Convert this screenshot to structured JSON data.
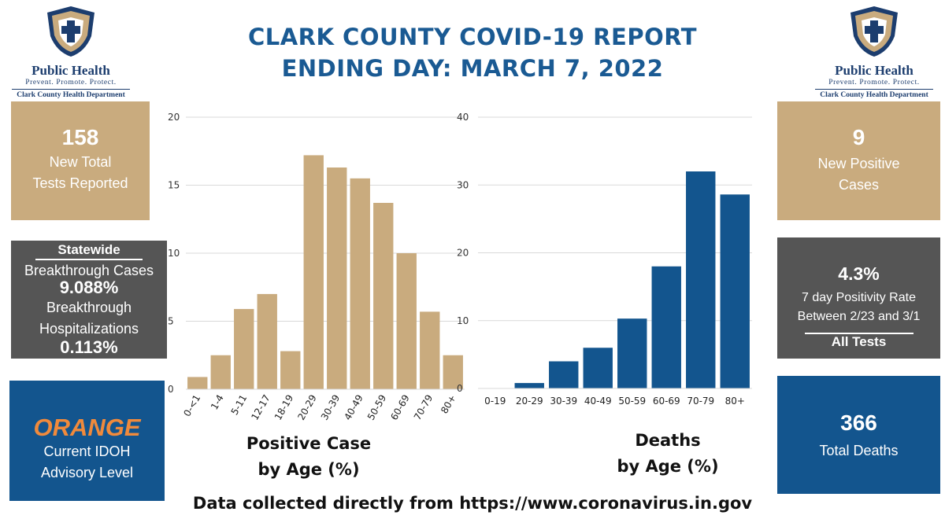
{
  "header": {
    "title_line1": "CLARK COUNTY COVID-19 REPORT",
    "title_line2": "ENDING DAY: MARCH 7, 2022"
  },
  "logo": {
    "name": "Public Health",
    "tagline": "Prevent. Promote. Protect.",
    "department": "Clark County Health Department"
  },
  "left_panels": {
    "tests": {
      "value": "158",
      "line1": "New Total",
      "line2": "Tests Reported"
    },
    "breakthrough": {
      "heading": "Statewide",
      "cases_label": "Breakthrough Cases",
      "cases_value": "9.088%",
      "hosp_label1": "Breakthrough",
      "hosp_label2": "Hospitalizations",
      "hosp_value": "0.113%"
    },
    "advisory": {
      "level": "ORANGE",
      "line1": "Current IDOH",
      "line2": "Advisory Level"
    }
  },
  "right_panels": {
    "cases": {
      "value": "9",
      "line1": "New Positive",
      "line2": "Cases"
    },
    "positivity": {
      "value": "4.3%",
      "line1": "7  day  Positivity Rate",
      "line2": "Between 2/23 and 3/1",
      "footer": "All Tests"
    },
    "deaths": {
      "value": "366",
      "label": "Total Deaths"
    }
  },
  "chart_captions": {
    "cases_line1": "Positive Case",
    "cases_line2": "by Age (%)",
    "deaths_line1": "Deaths",
    "deaths_line2": "by Age (%)"
  },
  "footer": {
    "text": "Data collected directly from https://www.coronavirus.in.gov"
  },
  "colors": {
    "tan": "#c9ab7e",
    "grey": "#555555",
    "blue": "#13558e",
    "orange": "#f08a3c",
    "title": "#1a5a93"
  },
  "chart_data": [
    {
      "type": "bar",
      "categories": [
        "0-<1",
        "1-4",
        "5-11",
        "12-17",
        "18-19",
        "20-29",
        "30-39",
        "40-49",
        "50-59",
        "60-69",
        "70-79",
        "80+"
      ],
      "values": [
        0.9,
        2.5,
        5.9,
        7.0,
        2.8,
        17.2,
        16.3,
        15.5,
        13.7,
        10.0,
        5.7,
        2.5
      ],
      "yticks": [
        0,
        5,
        10,
        15,
        20
      ],
      "ylim": [
        0,
        20
      ],
      "color": "#c9ab7e"
    },
    {
      "type": "bar",
      "categories": [
        "0-19",
        "20-29",
        "30-39",
        "40-49",
        "50-59",
        "60-69",
        "70-79",
        "80+"
      ],
      "values": [
        0,
        0.8,
        4.0,
        6.0,
        10.3,
        18.0,
        32.0,
        28.6
      ],
      "yticks": [
        0,
        10,
        20,
        30,
        40
      ],
      "ylim": [
        0,
        40
      ],
      "color": "#13558e"
    }
  ]
}
